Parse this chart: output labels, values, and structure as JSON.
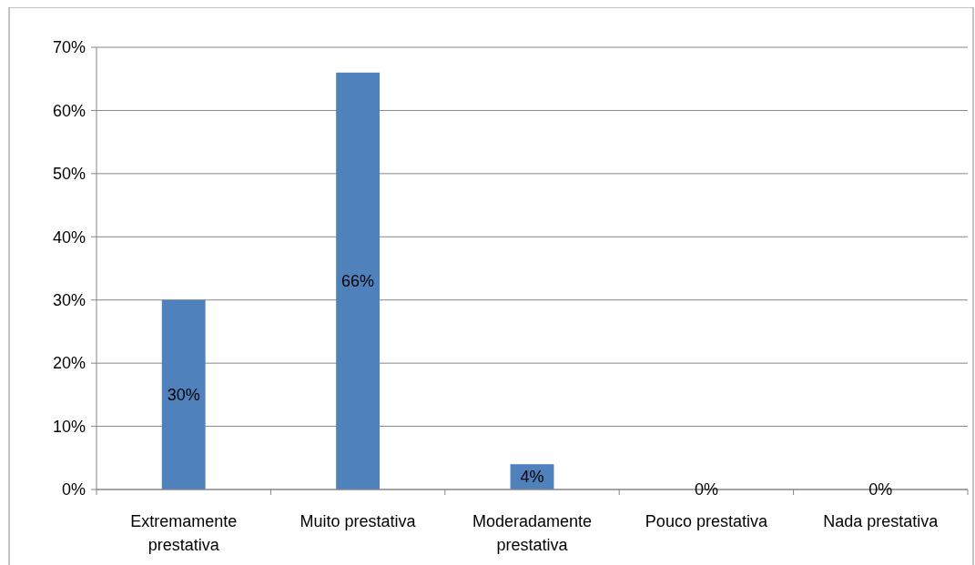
{
  "chart_data": {
    "type": "bar",
    "categories": [
      "Extremamente prestativa",
      "Muito prestativa",
      "Moderadamente prestativa",
      "Pouco prestativa",
      "Nada prestativa"
    ],
    "values": [
      30,
      66,
      4,
      0,
      0
    ],
    "value_labels": [
      "30%",
      "66%",
      "4%",
      "0%",
      "0%"
    ],
    "color": "#4f81bd",
    "ylim": [
      0,
      70
    ],
    "yticks": [
      {
        "value": 0,
        "label": "0%"
      },
      {
        "value": 10,
        "label": "10%"
      },
      {
        "value": 20,
        "label": "20%"
      },
      {
        "value": 30,
        "label": "30%"
      },
      {
        "value": 40,
        "label": "40%"
      },
      {
        "value": 50,
        "label": "50%"
      },
      {
        "value": 60,
        "label": "60%"
      },
      {
        "value": 70,
        "label": "70%"
      }
    ],
    "grid": "y"
  }
}
